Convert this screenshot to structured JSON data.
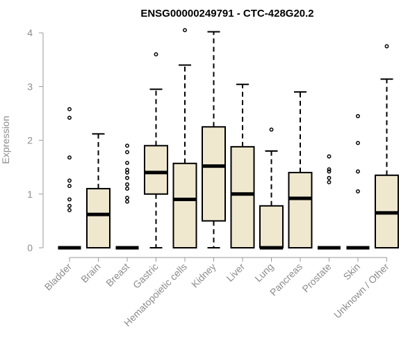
{
  "chart_data": {
    "type": "box",
    "title": "ENSG00000249791 - CTC-428G20.2",
    "xlabel": "",
    "ylabel": "Expression",
    "ylim": [
      0,
      4.05
    ],
    "yticks": [
      "0",
      "1",
      "2",
      "3",
      "4"
    ],
    "box_fill": "#efe8cf",
    "outlier_color": "#000000",
    "categories": [
      "Bladder",
      "Brain",
      "Breast",
      "Gastric",
      "Hematopoietic cells",
      "Kidney",
      "Liver",
      "Lung",
      "Pancreas",
      "Prostate",
      "Skin",
      "Unknown / Other"
    ],
    "boxes": [
      {
        "q1": 0,
        "median": 0,
        "q3": 0,
        "whisker_low": 0,
        "whisker_high": 0,
        "outliers": [
          0.7,
          0.78,
          0.9,
          1.15,
          1.25,
          1.68,
          2.42,
          2.58
        ]
      },
      {
        "q1": 0,
        "median": 0.62,
        "q3": 1.1,
        "whisker_low": 0,
        "whisker_high": 2.12,
        "outliers": []
      },
      {
        "q1": 0,
        "median": 0,
        "q3": 0,
        "whisker_low": 0,
        "whisker_high": 0,
        "outliers": [
          0.86,
          0.93,
          1.1,
          1.18,
          1.3,
          1.4,
          1.45,
          1.58,
          1.78,
          1.9
        ]
      },
      {
        "q1": 1.0,
        "median": 1.4,
        "q3": 1.9,
        "whisker_low": 0,
        "whisker_high": 2.95,
        "outliers": [
          3.6
        ]
      },
      {
        "q1": 0,
        "median": 0.9,
        "q3": 1.57,
        "whisker_low": 0,
        "whisker_high": 3.4,
        "outliers": [
          4.05
        ]
      },
      {
        "q1": 0.5,
        "median": 1.52,
        "q3": 2.25,
        "whisker_low": 0,
        "whisker_high": 4.02,
        "outliers": []
      },
      {
        "q1": 0,
        "median": 1.0,
        "q3": 1.88,
        "whisker_low": 0,
        "whisker_high": 3.04,
        "outliers": []
      },
      {
        "q1": 0,
        "median": 0,
        "q3": 0.78,
        "whisker_low": 0,
        "whisker_high": 1.8,
        "outliers": [
          2.2
        ]
      },
      {
        "q1": 0,
        "median": 0.92,
        "q3": 1.4,
        "whisker_low": 0,
        "whisker_high": 2.9,
        "outliers": []
      },
      {
        "q1": 0,
        "median": 0,
        "q3": 0,
        "whisker_low": 0,
        "whisker_high": 0,
        "outliers": [
          1.22,
          1.3,
          1.42,
          1.46,
          1.7
        ]
      },
      {
        "q1": 0,
        "median": 0,
        "q3": 0,
        "whisker_low": 0,
        "whisker_high": 0,
        "outliers": [
          1.05,
          1.42,
          1.95,
          2.45
        ]
      },
      {
        "q1": 0,
        "median": 0.65,
        "q3": 1.35,
        "whisker_low": 0,
        "whisker_high": 3.14,
        "outliers": [
          3.75
        ]
      }
    ]
  }
}
